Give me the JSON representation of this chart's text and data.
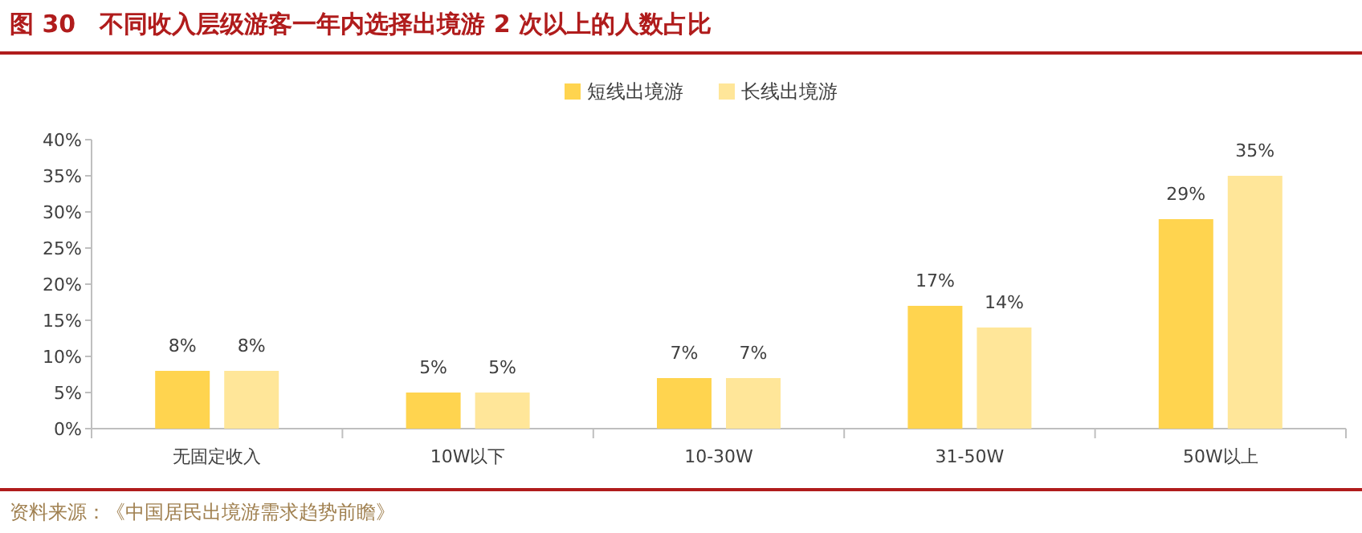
{
  "chart_data": {
    "type": "bar",
    "title": "图 30　不同收入层级游客一年内选择出境游 2 次以上的人数占比",
    "categories": [
      "无固定收入",
      "10W以下",
      "10-30W",
      "31-50W",
      "50W以上"
    ],
    "series": [
      {
        "name": "短线出境游",
        "color": "#ffd44f",
        "values": [
          8,
          5,
          7,
          17,
          29
        ],
        "value_labels": [
          "8%",
          "5%",
          "7%",
          "17%",
          "29%"
        ]
      },
      {
        "name": "长线出境游",
        "color": "#ffe699",
        "values": [
          8,
          5,
          7,
          14,
          35
        ],
        "value_labels": [
          "8%",
          "5%",
          "7%",
          "14%",
          "35%"
        ]
      }
    ],
    "ylim": [
      0,
      40
    ],
    "yticks": [
      {
        "value": 0,
        "label": "0%"
      },
      {
        "value": 5,
        "label": "5%"
      },
      {
        "value": 10,
        "label": "10%"
      },
      {
        "value": 15,
        "label": "15%"
      },
      {
        "value": 20,
        "label": "20%"
      },
      {
        "value": 25,
        "label": "25%"
      },
      {
        "value": 30,
        "label": "30%"
      },
      {
        "value": 35,
        "label": "35%"
      },
      {
        "value": 40,
        "label": "40%"
      }
    ],
    "legend": "top",
    "annotations": [
      "资料来源：《中国居民出境游需求趋势前瞻》"
    ]
  }
}
